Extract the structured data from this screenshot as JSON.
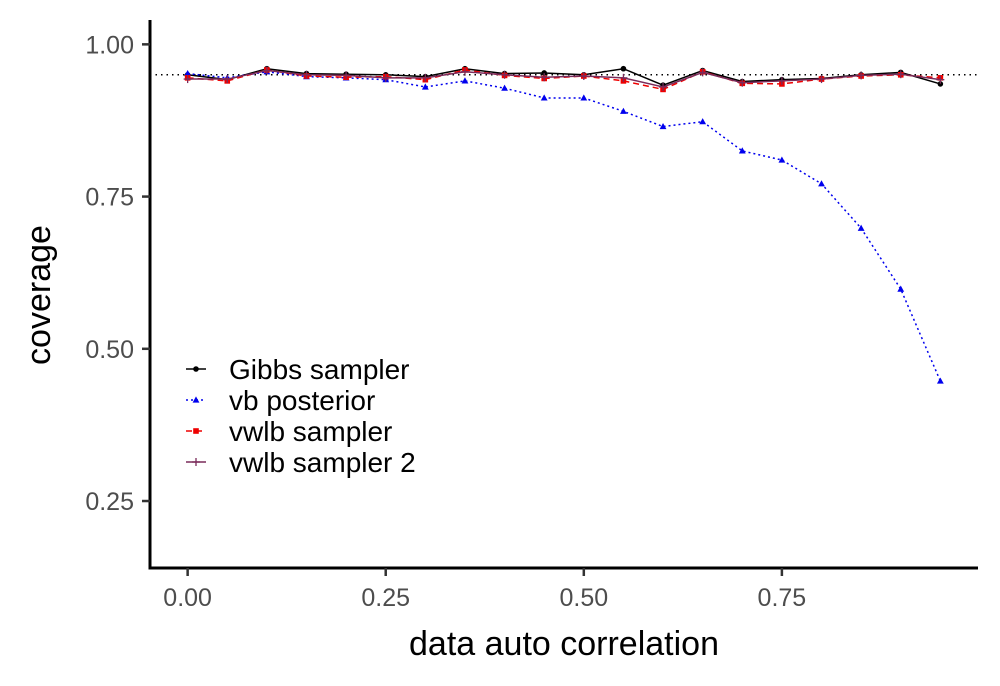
{
  "chart_data": {
    "type": "line",
    "title": "",
    "xlabel": "data auto correlation",
    "ylabel": "coverage",
    "xlim": [
      -0.0475,
      0.9975
    ],
    "ylim": [
      0.14,
      1.04
    ],
    "x_ticks": [
      0.0,
      0.25,
      0.5,
      0.75
    ],
    "x_tick_labels": [
      "0.00",
      "0.25",
      "0.50",
      "0.75"
    ],
    "y_ticks": [
      0.25,
      0.5,
      0.75,
      1.0
    ],
    "y_tick_labels": [
      "0.25",
      "0.50",
      "0.75",
      "1.00"
    ],
    "reference_line": {
      "y": 0.95,
      "style": "dotted",
      "color": "#000000"
    },
    "grid": false,
    "legend_position": "bottom-left",
    "x": [
      0.0,
      0.05,
      0.1,
      0.15,
      0.2,
      0.25,
      0.3,
      0.35,
      0.4,
      0.45,
      0.5,
      0.55,
      0.6,
      0.65,
      0.7,
      0.75,
      0.8,
      0.85,
      0.9,
      0.95
    ],
    "series": [
      {
        "name": "Gibbs sampler",
        "color": "#000000",
        "dash": "solid",
        "marker": "circle",
        "values": [
          0.95,
          0.942,
          0.96,
          0.952,
          0.951,
          0.95,
          0.947,
          0.96,
          0.952,
          0.953,
          0.95,
          0.96,
          0.933,
          0.957,
          0.939,
          0.942,
          0.944,
          0.95,
          0.954,
          0.935
        ]
      },
      {
        "name": "vb posterior",
        "color": "#0000ee",
        "dash": "dotted",
        "marker": "triangle",
        "values": [
          0.952,
          0.945,
          0.955,
          0.947,
          0.945,
          0.942,
          0.93,
          0.94,
          0.928,
          0.912,
          0.912,
          0.89,
          0.865,
          0.873,
          0.825,
          0.81,
          0.771,
          0.698,
          0.598,
          0.447
        ]
      },
      {
        "name": "vwlb sampler",
        "color": "#ee0000",
        "dash": "dashed",
        "marker": "square",
        "values": [
          0.945,
          0.94,
          0.958,
          0.948,
          0.946,
          0.947,
          0.942,
          0.958,
          0.949,
          0.944,
          0.948,
          0.94,
          0.926,
          0.955,
          0.936,
          0.935,
          0.943,
          0.948,
          0.95,
          0.945
        ]
      },
      {
        "name": "vwlb sampler 2",
        "color": "#7a2b5a",
        "dash": "solid",
        "marker": "plus",
        "values": [
          0.943,
          0.943,
          0.957,
          0.95,
          0.949,
          0.945,
          0.945,
          0.955,
          0.95,
          0.946,
          0.948,
          0.945,
          0.93,
          0.954,
          0.937,
          0.94,
          0.943,
          0.949,
          0.951,
          0.942
        ]
      }
    ]
  }
}
